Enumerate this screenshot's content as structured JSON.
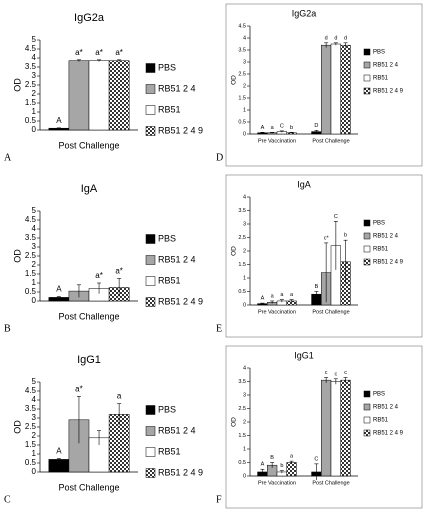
{
  "chart_data": [
    {
      "type": "bar",
      "panel": "A",
      "title": "IgG2a",
      "ylabel": "OD",
      "categories": [
        "Post Challenge"
      ],
      "ylim": [
        0,
        5
      ],
      "yticks": [
        0,
        0.5,
        1,
        1.5,
        2,
        2.5,
        3,
        3.5,
        4,
        4.5,
        5
      ],
      "series": [
        {
          "name": "PBS",
          "color": "#000000",
          "values": [
            0.1
          ],
          "errors": [
            0.02
          ],
          "letters": [
            "A"
          ]
        },
        {
          "name": "RB51 2 4",
          "color": "#a6a6a6",
          "values": [
            3.85
          ],
          "errors": [
            0.05
          ],
          "letters": [
            "a*"
          ]
        },
        {
          "name": "RB51",
          "color": "#ffffff",
          "values": [
            3.85
          ],
          "errors": [
            0.05
          ],
          "letters": [
            "a*"
          ]
        },
        {
          "name": "RB51 2 4 9",
          "color": "#404040",
          "hatch": "checker",
          "values": [
            3.85
          ],
          "errors": [
            0.05
          ],
          "letters": [
            "a*"
          ]
        }
      ]
    },
    {
      "type": "bar",
      "panel": "B",
      "title": "IgA",
      "ylabel": "OD",
      "categories": [
        "Post Challenge"
      ],
      "ylim": [
        0,
        5
      ],
      "yticks": [
        0,
        0.5,
        1,
        1.5,
        2,
        2.5,
        3,
        3.5,
        4,
        4.5,
        5
      ],
      "series": [
        {
          "name": "PBS",
          "color": "#000000",
          "values": [
            0.2
          ],
          "errors": [
            0.05
          ],
          "letters": [
            "A"
          ]
        },
        {
          "name": "RB51 2 4",
          "color": "#a6a6a6",
          "values": [
            0.55
          ],
          "errors": [
            0.35
          ],
          "letters": [
            null
          ]
        },
        {
          "name": "RB51",
          "color": "#ffffff",
          "values": [
            0.7
          ],
          "errors": [
            0.3
          ],
          "letters": [
            "a*"
          ]
        },
        {
          "name": "RB51 2 4 9",
          "color": "#404040",
          "hatch": "checker",
          "values": [
            0.75
          ],
          "errors": [
            0.5
          ],
          "letters": [
            "a*"
          ]
        }
      ]
    },
    {
      "type": "bar",
      "panel": "C",
      "title": "IgG1",
      "ylabel": "OD",
      "categories": [
        "Post Challenge"
      ],
      "ylim": [
        0,
        5
      ],
      "yticks": [
        0,
        0.5,
        1,
        1.5,
        2,
        2.5,
        3,
        3.5,
        4,
        4.5,
        5
      ],
      "series": [
        {
          "name": "PBS",
          "color": "#000000",
          "values": [
            0.7
          ],
          "errors": [
            0.05
          ],
          "letters": [
            "A"
          ]
        },
        {
          "name": "RB51 2 4",
          "color": "#a6a6a6",
          "values": [
            2.9
          ],
          "errors": [
            1.3
          ],
          "letters": [
            "a*"
          ]
        },
        {
          "name": "RB51",
          "color": "#ffffff",
          "values": [
            1.9
          ],
          "errors": [
            0.4
          ],
          "letters": [
            null
          ]
        },
        {
          "name": "RB51 2 4 9",
          "color": "#404040",
          "hatch": "checker",
          "values": [
            3.2
          ],
          "errors": [
            0.6
          ],
          "letters": [
            "a"
          ]
        }
      ]
    },
    {
      "type": "bar",
      "panel": "D",
      "title": "IgG2a",
      "ylabel": "OD",
      "categories": [
        "Pre Vaccination",
        "Post Challenge"
      ],
      "ylim": [
        0,
        4.5
      ],
      "yticks": [
        0,
        0.5,
        1,
        1.5,
        2,
        2.5,
        3,
        3.5,
        4,
        4.5
      ],
      "series": [
        {
          "name": "PBS",
          "color": "#000000",
          "values": [
            0.05,
            0.1
          ],
          "errors": [
            0.02,
            0.05
          ],
          "letters": [
            "A",
            "D"
          ]
        },
        {
          "name": "RB51 2 4",
          "color": "#a6a6a6",
          "values": [
            0.05,
            3.7
          ],
          "errors": [
            0.02,
            0.1
          ],
          "letters": [
            "a",
            "d"
          ]
        },
        {
          "name": "RB51",
          "color": "#ffffff",
          "values": [
            0.1,
            3.75
          ],
          "errors": [
            0.03,
            0.05
          ],
          "letters": [
            "C",
            "d"
          ]
        },
        {
          "name": "RB51 2 4 9",
          "color": "#404040",
          "hatch": "checker",
          "values": [
            0.05,
            3.7
          ],
          "errors": [
            0.02,
            0.1
          ],
          "letters": [
            "b",
            "d"
          ]
        }
      ]
    },
    {
      "type": "bar",
      "panel": "E",
      "title": "IgA",
      "ylabel": "OD",
      "categories": [
        "Pre Vaccination",
        "Post Challenge"
      ],
      "ylim": [
        0,
        4
      ],
      "yticks": [
        0,
        0.5,
        1,
        1.5,
        2,
        2.5,
        3,
        3.5,
        4
      ],
      "series": [
        {
          "name": "PBS",
          "color": "#000000",
          "values": [
            0.05,
            0.4
          ],
          "errors": [
            0.02,
            0.1
          ],
          "letters": [
            "A",
            "B"
          ]
        },
        {
          "name": "RB51 2 4",
          "color": "#a6a6a6",
          "values": [
            0.1,
            1.2
          ],
          "errors": [
            0.05,
            1.1
          ],
          "letters": [
            "a",
            "c*"
          ]
        },
        {
          "name": "RB51",
          "color": "#ffffff",
          "values": [
            0.15,
            2.2
          ],
          "errors": [
            0.05,
            0.9
          ],
          "letters": [
            "a",
            "C"
          ]
        },
        {
          "name": "RB51 2 4 9",
          "color": "#404040",
          "hatch": "checker",
          "values": [
            0.15,
            1.6
          ],
          "errors": [
            0.05,
            0.8
          ],
          "letters": [
            "a",
            "b"
          ]
        }
      ]
    },
    {
      "type": "bar",
      "panel": "F",
      "title": "IgG1",
      "ylabel": "OD",
      "categories": [
        "Pre Vaccination",
        "Post Challenge"
      ],
      "ylim": [
        0,
        4
      ],
      "yticks": [
        0,
        0.5,
        1,
        1.5,
        2,
        2.5,
        3,
        3.5,
        4
      ],
      "series": [
        {
          "name": "PBS",
          "color": "#000000",
          "values": [
            0.15,
            0.15
          ],
          "errors": [
            0.1,
            0.3
          ],
          "letters": [
            "A",
            "C"
          ]
        },
        {
          "name": "RB51 2 4",
          "color": "#a6a6a6",
          "values": [
            0.4,
            3.55
          ],
          "errors": [
            0.1,
            0.1
          ],
          "letters": [
            "B",
            "c"
          ]
        },
        {
          "name": "RB51",
          "color": "#ffffff",
          "values": [
            0.15,
            3.5
          ],
          "errors": [
            0.05,
            0.1
          ],
          "letters": [
            "b",
            "c"
          ]
        },
        {
          "name": "RB51 2 4 9",
          "color": "#404040",
          "hatch": "checker",
          "values": [
            0.5,
            3.55
          ],
          "errors": [
            0.05,
            0.1
          ],
          "letters": [
            "a",
            "c"
          ]
        }
      ]
    }
  ]
}
